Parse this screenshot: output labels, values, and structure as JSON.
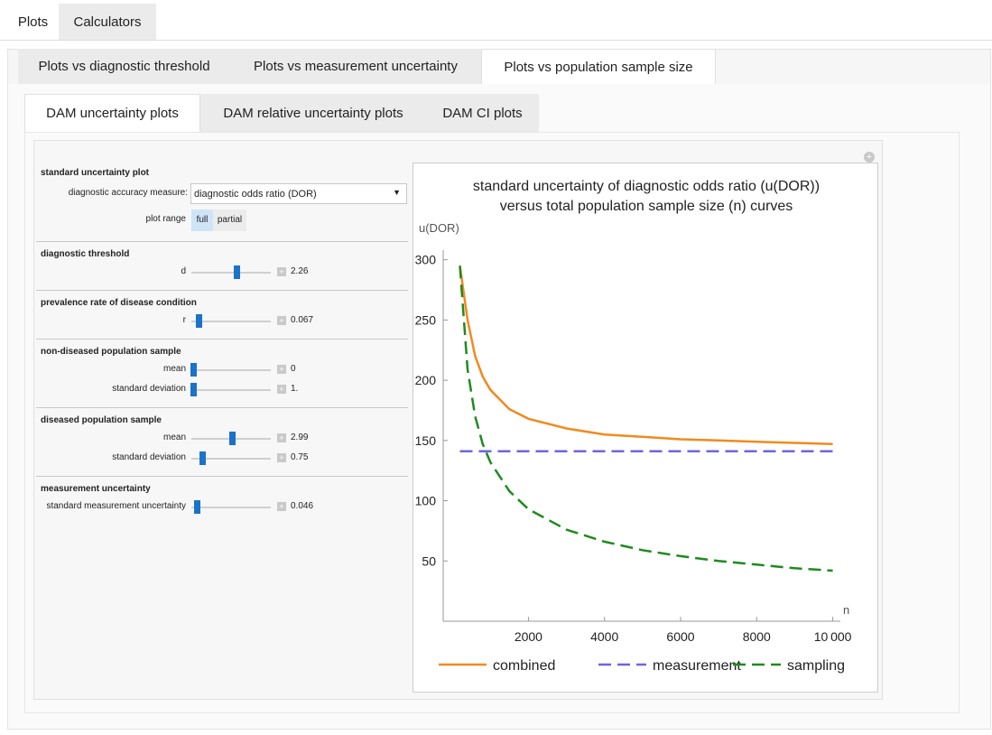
{
  "tabs": {
    "level1": [
      "Plots",
      "Calculators"
    ],
    "level2": [
      "Plots vs diagnostic threshold",
      "Plots vs measurement uncertainty",
      "Plots vs population sample size"
    ],
    "level3": [
      "DAM uncertainty plots",
      "DAM relative uncertainty plots",
      "DAM CI plots"
    ]
  },
  "controls": {
    "section": "standard uncertainty plot",
    "measure_label": "diagnostic accuracy measure:",
    "measure_value": "diagnostic odds ratio (DOR)",
    "range_label": "plot range",
    "range_options": [
      "full",
      "partial"
    ],
    "groups": [
      {
        "title": "diagnostic threshold",
        "sliders": [
          {
            "label": "d",
            "value": "2.26"
          }
        ]
      },
      {
        "title": "prevalence rate of disease condition",
        "sliders": [
          {
            "label": "r",
            "value": "0.067"
          }
        ]
      },
      {
        "title": "non‐diseased population sample",
        "sliders": [
          {
            "label": "mean",
            "value": "0"
          },
          {
            "label": "standard deviation",
            "value": "1."
          }
        ]
      },
      {
        "title": "diseased population sample",
        "sliders": [
          {
            "label": "mean",
            "value": "2.99"
          },
          {
            "label": "standard deviation",
            "value": "0.75"
          }
        ]
      },
      {
        "title": "measurement uncertainty",
        "sliders": [
          {
            "label": "standard measurement uncertainty",
            "value": "0.046"
          }
        ]
      }
    ]
  },
  "chart_data": {
    "type": "line",
    "title": [
      "standard uncertainty of diagnostic odds ratio (u(DOR))",
      "versus total population sample size (n) curves"
    ],
    "y_label": "u(DOR)",
    "x_label": "n",
    "x": [
      200,
      400,
      600,
      800,
      1000,
      1500,
      2000,
      3000,
      4000,
      5000,
      6000,
      7000,
      8000,
      9000,
      10000
    ],
    "series": [
      {
        "name": "combined",
        "color": "#f28a1e",
        "dashed": false,
        "values": [
          295,
          250,
          220,
          203,
          192,
          176,
          168,
          160,
          155,
          153,
          151,
          150,
          149,
          148,
          147
        ]
      },
      {
        "name": "measurement",
        "color": "#6f64dc",
        "dashed": true,
        "values": [
          141,
          141,
          141,
          141,
          141,
          141,
          141,
          141,
          141,
          141,
          141,
          141,
          141,
          141,
          141
        ]
      },
      {
        "name": "sampling",
        "color": "#1f8a1f",
        "dashed": true,
        "values": [
          295,
          209,
          170,
          147,
          132,
          108,
          93,
          76,
          66,
          59,
          54,
          50,
          47,
          44,
          42
        ]
      }
    ],
    "xlim": [
      -240,
      10200
    ],
    "ylim": [
      0,
      308
    ],
    "xticks": [
      2000,
      4000,
      6000,
      8000,
      {
        "value": 10000,
        "label": "10 000"
      }
    ],
    "yticks": [
      50,
      100,
      150,
      200,
      250,
      300
    ]
  }
}
